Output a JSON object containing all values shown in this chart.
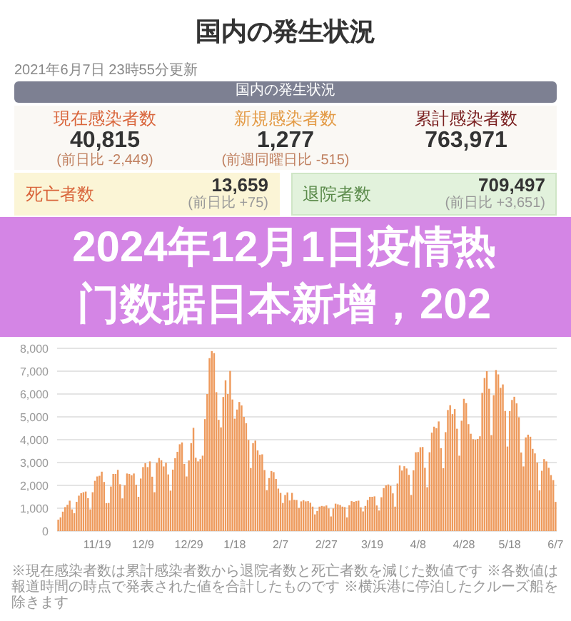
{
  "chart_data": [
    {
      "type": "other",
      "title": "国内の発生状況",
      "subtitle": "2021年6月7日 23時55分更新",
      "annotations": [
        "国内の発生状況",
        "現在感染者数",
        "40,815",
        "(前日比 -2,449)",
        "新規感染者数",
        "1,277",
        "(前週同曜日比 -515)",
        "累計感染者数",
        "763,971",
        "死亡者数",
        "13,659",
        "(前日比 +75)",
        "退院者数",
        "709,497",
        "(前日比 +3,651)"
      ]
    },
    {
      "type": "bar",
      "title": "2024年12月1日疫情热门数据日本新增，202",
      "color": "#ee9a5c",
      "grid": "y",
      "ylim": [
        0,
        8000
      ],
      "yticks": [
        0,
        {
          "value": 1000,
          "label": "1,000"
        },
        {
          "value": 2000,
          "label": "2,000"
        },
        {
          "value": 3000,
          "label": "3,000"
        },
        {
          "value": 4000,
          "label": "4,000"
        },
        {
          "value": 5000,
          "label": "5,000"
        },
        {
          "value": 6000,
          "label": "6,000"
        },
        {
          "value": 7000,
          "label": "7,000"
        },
        {
          "value": 8000,
          "label": "8,000"
        }
      ],
      "categories": [
        null,
        null,
        null,
        null,
        null,
        null,
        null,
        null,
        null,
        null,
        null,
        null,
        null,
        null,
        null,
        null,
        null,
        "11/19",
        null,
        null,
        null,
        null,
        null,
        null,
        null,
        null,
        null,
        null,
        null,
        null,
        null,
        null,
        null,
        null,
        null,
        null,
        null,
        "12/9",
        null,
        null,
        null,
        null,
        null,
        null,
        null,
        null,
        null,
        null,
        null,
        null,
        null,
        null,
        null,
        null,
        null,
        null,
        null,
        "12/29",
        null,
        null,
        null,
        null,
        null,
        null,
        null,
        null,
        null,
        null,
        null,
        null,
        null,
        null,
        null,
        null,
        null,
        null,
        null,
        "1/18",
        null,
        null,
        null,
        null,
        null,
        null,
        null,
        null,
        null,
        null,
        null,
        null,
        null,
        null,
        null,
        null,
        null,
        null,
        null,
        "2/7",
        null,
        null,
        null,
        null,
        null,
        null,
        null,
        null,
        null,
        null,
        null,
        null,
        null,
        null,
        null,
        null,
        null,
        null,
        null,
        "2/27",
        null,
        null,
        null,
        null,
        null,
        null,
        null,
        null,
        null,
        null,
        null,
        null,
        null,
        null,
        null,
        null,
        null,
        null,
        null,
        "3/19",
        null,
        null,
        null,
        null,
        null,
        null,
        null,
        null,
        null,
        null,
        null,
        null,
        null,
        null,
        null,
        null,
        null,
        null,
        null,
        "4/8",
        null,
        null,
        null,
        null,
        null,
        null,
        null,
        null,
        null,
        null,
        null,
        null,
        null,
        null,
        null,
        null,
        null,
        null,
        null,
        "4/28",
        null,
        null,
        null,
        null,
        null,
        null,
        null,
        null,
        null,
        null,
        null,
        null,
        null,
        null,
        null,
        null,
        null,
        null,
        null,
        "5/18",
        null,
        null,
        null,
        null,
        null,
        null,
        null,
        null,
        null,
        null,
        null,
        null,
        null,
        null,
        null,
        null,
        null,
        null,
        null,
        "6/7"
      ],
      "values": [
        500,
        600,
        850,
        1050,
        1150,
        1330,
        950,
        780,
        1280,
        1550,
        1660,
        1700,
        1730,
        1440,
        950,
        1700,
        2200,
        2390,
        2420,
        2600,
        2150,
        1220,
        1230,
        1950,
        2500,
        2500,
        2680,
        2050,
        1430,
        2000,
        2520,
        2500,
        2440,
        2520,
        2030,
        1500,
        2300,
        2800,
        2970,
        2800,
        3050,
        2380,
        1700,
        2990,
        3200,
        3100,
        2830,
        2990,
        2480,
        1770,
        2690,
        3190,
        3470,
        3800,
        3880,
        2940,
        2390,
        3090,
        3850,
        4520,
        3210,
        3050,
        3150,
        3300,
        4900,
        6000,
        7570,
        7880,
        7790,
        6080,
        4870,
        4540,
        5870,
        6600,
        6000,
        7010,
        5760,
        4920,
        5320,
        5650,
        5500,
        5000,
        4720,
        3990,
        2760,
        3850,
        3960,
        3530,
        3340,
        3360,
        2670,
        1790,
        2320,
        2630,
        2580,
        2280,
        1860,
        1670,
        1230,
        1580,
        1690,
        1340,
        1670,
        1370,
        1360,
        1010,
        1300,
        1350,
        1300,
        1310,
        1240,
        1070,
        730,
        880,
        1070,
        1100,
        1080,
        1120,
        990,
        640,
        990,
        1200,
        1170,
        1140,
        1070,
        1050,
        600,
        1130,
        1310,
        1280,
        1310,
        1330,
        1040,
        860,
        1100,
        1360,
        1500,
        1500,
        1520,
        1120,
        900,
        1480,
        1880,
        2000,
        2040,
        1980,
        1650,
        1070,
        2080,
        2870,
        2650,
        2840,
        2740,
        2460,
        1580,
        2660,
        3450,
        3460,
        3670,
        3680,
        2770,
        1920,
        3450,
        4310,
        4570,
        4500,
        4800,
        3630,
        2750,
        4330,
        5300,
        5510,
        5120,
        5340,
        4480,
        3300,
        4830,
        5790,
        5600,
        4680,
        4260,
        4020,
        4000,
        4030,
        4150,
        6050,
        6700,
        7000,
        6230,
        4200,
        5950,
        7050,
        6860,
        6270,
        6420,
        5260,
        3700,
        5250,
        5740,
        5880,
        5590,
        4980,
        3440,
        2830,
        4100,
        4220,
        4130,
        3600,
        3400,
        3000,
        1780,
        2640,
        3150,
        3050,
        2770,
        2450,
        2230,
        1277
      ],
      "annotations": [
        "※現在感染者数は累計感染者数から退院者数と死亡者数を減じた数値です ※各数値は報道時間の時点で発表された値を合計したものです ※横浜港に停泊したクルーズ船を除きます"
      ]
    }
  ]
}
